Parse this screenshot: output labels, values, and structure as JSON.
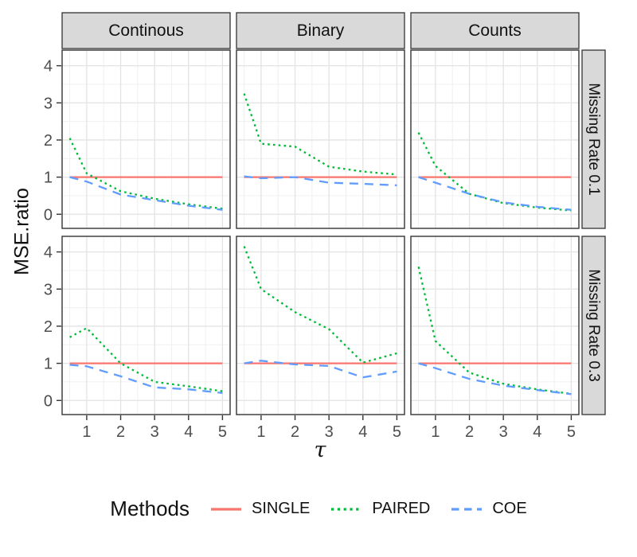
{
  "chart_data": {
    "type": "line",
    "xlabel": "τ",
    "ylabel": "MSE.ratio",
    "x": [
      0.5,
      1,
      2,
      3,
      4,
      5
    ],
    "x_ticks": [
      1,
      2,
      3,
      4,
      5
    ],
    "y_ticks": [
      0,
      1,
      2,
      3,
      4
    ],
    "x_minor": [
      0.5,
      1.5,
      2.5,
      3.5,
      4.5
    ],
    "y_minor": [
      0.5,
      1.5,
      2.5,
      3.5
    ],
    "xlim": [
      0.275,
      5.225
    ],
    "ylim": [
      -0.38,
      4.42
    ],
    "grid": true,
    "legend_position": "bottom",
    "facet_cols": [
      "Continous",
      "Binary",
      "Counts"
    ],
    "facet_rows": [
      "Missing Rate 0.1",
      "Missing Rate 0.3"
    ],
    "series_styles": {
      "SINGLE": {
        "color": "#F8766D",
        "dash": "solid"
      },
      "PAIRED": {
        "color": "#00BA38",
        "dash": "dotted"
      },
      "COE": {
        "color": "#619CFF",
        "dash": "dashed"
      }
    },
    "panels": [
      {
        "row": "Missing Rate 0.1",
        "col": "Continous",
        "series": [
          {
            "name": "SINGLE",
            "values": [
              1,
              1,
              1,
              1,
              1,
              1
            ]
          },
          {
            "name": "PAIRED",
            "values": [
              2.05,
              1.1,
              0.62,
              0.42,
              0.27,
              0.15
            ]
          },
          {
            "name": "COE",
            "values": [
              1.0,
              0.88,
              0.53,
              0.38,
              0.23,
              0.12
            ]
          }
        ]
      },
      {
        "row": "Missing Rate 0.1",
        "col": "Binary",
        "series": [
          {
            "name": "SINGLE",
            "values": [
              1,
              1,
              1,
              1,
              1,
              1
            ]
          },
          {
            "name": "PAIRED",
            "values": [
              3.25,
              1.9,
              1.82,
              1.28,
              1.15,
              1.07
            ]
          },
          {
            "name": "COE",
            "values": [
              1.02,
              0.97,
              1.0,
              0.85,
              0.82,
              0.78
            ]
          }
        ]
      },
      {
        "row": "Missing Rate 0.1",
        "col": "Counts",
        "series": [
          {
            "name": "SINGLE",
            "values": [
              1,
              1,
              1,
              1,
              1,
              1
            ]
          },
          {
            "name": "PAIRED",
            "values": [
              2.2,
              1.3,
              0.55,
              0.3,
              0.18,
              0.1
            ]
          },
          {
            "name": "COE",
            "values": [
              1.0,
              0.85,
              0.55,
              0.32,
              0.2,
              0.12
            ]
          }
        ]
      },
      {
        "row": "Missing Rate 0.3",
        "col": "Continous",
        "series": [
          {
            "name": "SINGLE",
            "values": [
              1,
              1,
              1,
              1,
              1,
              1
            ]
          },
          {
            "name": "PAIRED",
            "values": [
              1.7,
              1.95,
              1.0,
              0.5,
              0.38,
              0.25
            ]
          },
          {
            "name": "COE",
            "values": [
              0.96,
              0.92,
              0.65,
              0.35,
              0.3,
              0.2
            ]
          }
        ]
      },
      {
        "row": "Missing Rate 0.3",
        "col": "Binary",
        "series": [
          {
            "name": "SINGLE",
            "values": [
              1,
              1,
              1,
              1,
              1,
              1
            ]
          },
          {
            "name": "PAIRED",
            "values": [
              4.15,
              3.0,
              2.38,
              1.92,
              1.02,
              1.27
            ]
          },
          {
            "name": "COE",
            "values": [
              1.0,
              1.07,
              0.97,
              0.93,
              0.62,
              0.78
            ]
          }
        ]
      },
      {
        "row": "Missing Rate 0.3",
        "col": "Counts",
        "series": [
          {
            "name": "SINGLE",
            "values": [
              1,
              1,
              1,
              1,
              1,
              1
            ]
          },
          {
            "name": "PAIRED",
            "values": [
              3.6,
              1.6,
              0.75,
              0.45,
              0.3,
              0.18
            ]
          },
          {
            "name": "COE",
            "values": [
              1.0,
              0.87,
              0.58,
              0.4,
              0.28,
              0.17
            ]
          }
        ]
      }
    ]
  },
  "legend": {
    "title": "Methods",
    "items": [
      {
        "label": "SINGLE",
        "color": "#F8766D",
        "dash": "solid"
      },
      {
        "label": "PAIRED",
        "color": "#00BA38",
        "dash": "dotted"
      },
      {
        "label": "COE",
        "color": "#619CFF",
        "dash": "dashed"
      }
    ]
  },
  "theme": {
    "strip_fill": "#D9D9D9",
    "panel_border": "#333333",
    "grid_major": "#E3E3E3",
    "grid_minor": "#F0F0F0",
    "tick_label_color": "#4d4d4d"
  }
}
